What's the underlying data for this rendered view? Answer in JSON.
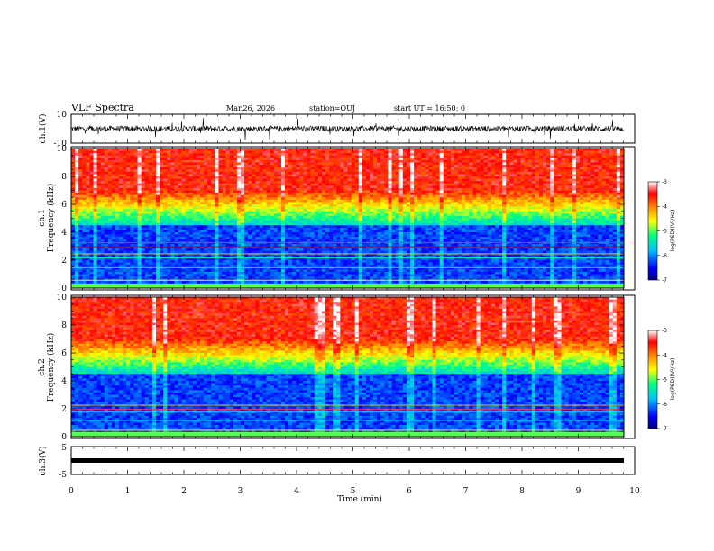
{
  "header": {
    "title": "VLF Spectra",
    "date": "Mar.26, 2026",
    "station": "station=OUJ",
    "start_ut": "start UT = 16:50: 0"
  },
  "chart_data": [
    {
      "type": "line",
      "name_label": "ch.1(V)",
      "ylabel": "ch.1(V)",
      "ylim": [
        -10,
        10
      ],
      "yticks": [
        "10",
        "-10"
      ],
      "xlim": [
        0,
        10
      ],
      "description_values": {
        "baseline": 0,
        "noise_amplitude": 2
      }
    },
    {
      "type": "heatmap",
      "ylabel_line1": "ch.1",
      "ylabel_line2": "Frequency (kHz)",
      "ylim": [
        0,
        10
      ],
      "yticks": [
        "0",
        "2",
        "4",
        "6",
        "8",
        "10"
      ],
      "xlim": [
        0,
        10
      ],
      "colorbar": {
        "label": "log(PSD)(V²/Hz)",
        "range": [
          -7,
          -3
        ],
        "ticks": [
          "-3",
          "-4",
          "-5",
          "-6",
          "-7"
        ]
      }
    },
    {
      "type": "heatmap",
      "ylabel_line1": "ch.2",
      "ylabel_line2": "Frequency (kHz)",
      "ylim": [
        0,
        10
      ],
      "yticks": [
        "0",
        "2",
        "4",
        "6",
        "8",
        "10"
      ],
      "xlim": [
        0,
        10
      ],
      "colorbar": {
        "label": "log(PSD)(V²/Hz)",
        "range": [
          -7,
          -3
        ],
        "ticks": [
          "-3",
          "-4",
          "-5",
          "-6",
          "-7"
        ]
      }
    },
    {
      "type": "line",
      "ylabel": "ch.3(V)",
      "ylim": [
        -5,
        5
      ],
      "yticks": [
        "5",
        "-5"
      ],
      "xlim": [
        0,
        10
      ],
      "xlabel": "Time (min)",
      "xticks": [
        "0",
        "1",
        "2",
        "3",
        "4",
        "5",
        "6",
        "7",
        "8",
        "9",
        "10"
      ],
      "constant_value": 0
    }
  ]
}
